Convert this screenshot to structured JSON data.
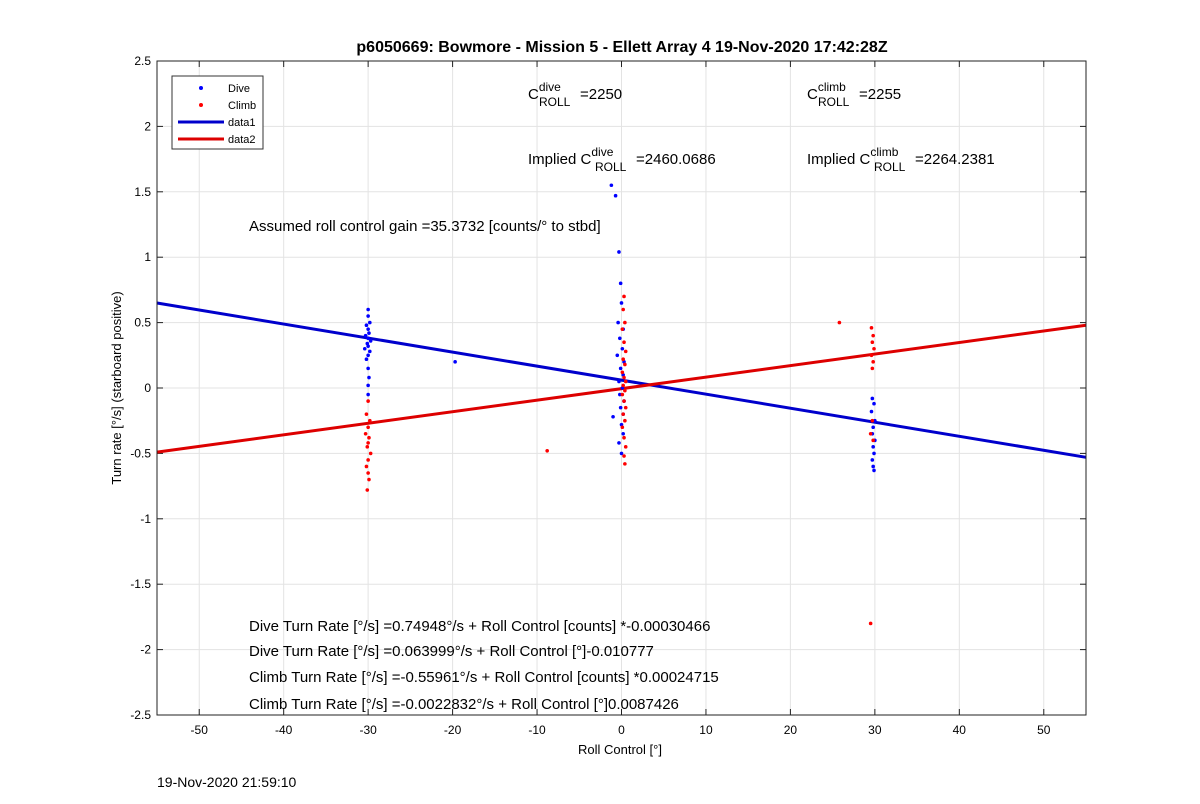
{
  "chart_data": {
    "type": "scatter",
    "title": "p6050669: Bowmore - Mission 5 - Ellett Array 4 19-Nov-2020 17:42:28Z",
    "xlabel": "Roll Control [°]",
    "ylabel": "Turn rate [°/s] (starboard positive)",
    "xlim": [
      -55,
      55
    ],
    "ylim": [
      -2.5,
      2.5
    ],
    "xticks": [
      -50,
      -40,
      -30,
      -20,
      -10,
      0,
      10,
      20,
      30,
      40,
      50
    ],
    "yticks": [
      -2.5,
      -2,
      -1.5,
      -1,
      -0.5,
      0,
      0.5,
      1,
      1.5,
      2,
      2.5
    ],
    "grid": true,
    "legend_position": "top-left",
    "legend": [
      {
        "label": "Dive",
        "marker": "dot",
        "color": "#0000ff"
      },
      {
        "label": "Climb",
        "marker": "dot",
        "color": "#ff0000"
      },
      {
        "label": "data1",
        "marker": "line",
        "color": "#0000cc"
      },
      {
        "label": "data2",
        "marker": "line",
        "color": "#dd0000"
      }
    ],
    "series": [
      {
        "name": "Dive",
        "kind": "points",
        "color": "#0000ff",
        "points": [
          [
            -30,
            0.6
          ],
          [
            -30,
            0.55
          ],
          [
            -29.8,
            0.5
          ],
          [
            -30.2,
            0.48
          ],
          [
            -30,
            0.45
          ],
          [
            -29.9,
            0.42
          ],
          [
            -30.3,
            0.4
          ],
          [
            -30,
            0.38
          ],
          [
            -29.7,
            0.36
          ],
          [
            -30.1,
            0.34
          ],
          [
            -30,
            0.32
          ],
          [
            -30.4,
            0.3
          ],
          [
            -29.8,
            0.28
          ],
          [
            -30,
            0.25
          ],
          [
            -30.2,
            0.22
          ],
          [
            -30,
            0.15
          ],
          [
            -29.9,
            0.08
          ],
          [
            -30,
            0.02
          ],
          [
            -30,
            -0.05
          ],
          [
            -19.7,
            0.2
          ],
          [
            -1.2,
            1.55
          ],
          [
            -0.7,
            1.47
          ],
          [
            -0.3,
            1.04
          ],
          [
            -0.1,
            0.8
          ],
          [
            0,
            0.65
          ],
          [
            -0.4,
            0.5
          ],
          [
            0.2,
            0.45
          ],
          [
            -0.2,
            0.38
          ],
          [
            0.1,
            0.3
          ],
          [
            -0.5,
            0.25
          ],
          [
            0.3,
            0.2
          ],
          [
            -0.1,
            0.15
          ],
          [
            0.2,
            0.1
          ],
          [
            -0.3,
            0.05
          ],
          [
            0.1,
            0
          ],
          [
            -0.2,
            -0.05
          ],
          [
            0.3,
            -0.1
          ],
          [
            -0.1,
            -0.15
          ],
          [
            0.2,
            -0.2
          ],
          [
            -1,
            -0.22
          ],
          [
            0,
            -0.28
          ],
          [
            0.2,
            -0.35
          ],
          [
            -0.3,
            -0.42
          ],
          [
            0,
            -0.5
          ],
          [
            29.7,
            -0.08
          ],
          [
            29.9,
            -0.12
          ],
          [
            29.6,
            -0.18
          ],
          [
            30,
            -0.25
          ],
          [
            29.8,
            -0.3
          ],
          [
            29.7,
            -0.35
          ],
          [
            30,
            -0.4
          ],
          [
            29.8,
            -0.45
          ],
          [
            29.9,
            -0.5
          ],
          [
            29.7,
            -0.55
          ],
          [
            29.8,
            -0.6
          ],
          [
            29.9,
            -0.63
          ]
        ]
      },
      {
        "name": "Climb",
        "kind": "points",
        "color": "#ff0000",
        "points": [
          [
            -30,
            -0.1
          ],
          [
            -30.2,
            -0.2
          ],
          [
            -29.8,
            -0.25
          ],
          [
            -30,
            -0.3
          ],
          [
            -30.3,
            -0.35
          ],
          [
            -29.9,
            -0.38
          ],
          [
            -30,
            -0.42
          ],
          [
            -30.1,
            -0.45
          ],
          [
            -29.7,
            -0.5
          ],
          [
            -30,
            -0.55
          ],
          [
            -30.2,
            -0.6
          ],
          [
            -30,
            -0.65
          ],
          [
            -29.9,
            -0.7
          ],
          [
            -30.1,
            -0.78
          ],
          [
            -8.8,
            -0.48
          ],
          [
            0.3,
            0.7
          ],
          [
            0.2,
            0.6
          ],
          [
            0.4,
            0.5
          ],
          [
            0.1,
            0.45
          ],
          [
            0.3,
            0.35
          ],
          [
            0.5,
            0.28
          ],
          [
            0.2,
            0.22
          ],
          [
            0.4,
            0.18
          ],
          [
            0.1,
            0.12
          ],
          [
            0.3,
            0.08
          ],
          [
            0.5,
            0.05
          ],
          [
            0.2,
            0.02
          ],
          [
            0.4,
            -0.02
          ],
          [
            0.1,
            -0.05
          ],
          [
            0.3,
            -0.1
          ],
          [
            0.5,
            -0.15
          ],
          [
            0.2,
            -0.2
          ],
          [
            0.4,
            -0.25
          ],
          [
            0.1,
            -0.3
          ],
          [
            0.3,
            -0.38
          ],
          [
            0.5,
            -0.45
          ],
          [
            0.3,
            -0.52
          ],
          [
            0.4,
            -0.58
          ],
          [
            25.8,
            0.5
          ],
          [
            29.6,
            0.46
          ],
          [
            29.8,
            0.4
          ],
          [
            29.7,
            0.35
          ],
          [
            29.9,
            0.3
          ],
          [
            29.6,
            0.25
          ],
          [
            29.8,
            0.2
          ],
          [
            29.7,
            0.15
          ],
          [
            29.7,
            -0.25
          ],
          [
            29.5,
            -0.35
          ],
          [
            29.8,
            -0.4
          ],
          [
            29.5,
            -1.8
          ]
        ]
      },
      {
        "name": "data1",
        "kind": "line",
        "color": "#0000cc",
        "points": [
          [
            -55,
            0.65
          ],
          [
            55,
            -0.53
          ]
        ]
      },
      {
        "name": "data2",
        "kind": "line",
        "color": "#dd0000",
        "points": [
          [
            -55,
            -0.49
          ],
          [
            55,
            0.48
          ]
        ]
      }
    ],
    "annotations": {
      "c_dive_base": "C",
      "c_dive_sup": "dive",
      "c_dive_sub": "ROLL",
      "c_dive_val": "=2250",
      "c_climb_base": "C",
      "c_climb_sup": "climb",
      "c_climb_sub": "ROLL",
      "c_climb_val": "=2255",
      "implied_dive_prefix": "Implied C",
      "implied_dive_sup": "dive",
      "implied_dive_sub": "ROLL",
      "implied_dive_val": "=2460.0686",
      "implied_climb_prefix": "Implied C",
      "implied_climb_sup": "climb",
      "implied_climb_sub": "ROLL",
      "implied_climb_val": "=2264.2381",
      "gain": "Assumed roll control gain =35.3732 [counts/° to stbd]",
      "fit1": "Dive Turn Rate [°/s] =0.74948°/s + Roll Control [counts] *-0.00030466",
      "fit2": "Dive Turn Rate [°/s] =0.063999°/s + Roll Control [°]-0.010777",
      "fit3": "Climb Turn Rate [°/s] =-0.55961°/s + Roll Control [counts] *0.00024715",
      "fit4": "Climb Turn Rate [°/s] =-0.0022832°/s + Roll Control [°]0.0087426"
    }
  },
  "footer": {
    "timestamp": "19-Nov-2020 21:59:10"
  }
}
